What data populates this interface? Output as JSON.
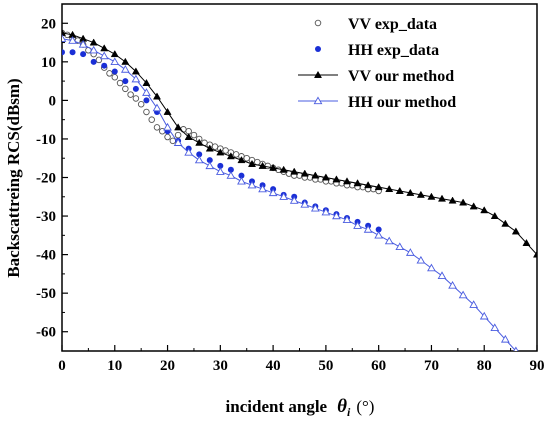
{
  "chart_data": {
    "type": "scatter",
    "xlabel": "incident angle",
    "xlabel_symbol": "θ",
    "xlabel_subscript": "i",
    "xlabel_unit": "(°)",
    "ylabel": "Backscattreing RCS(dBsm)",
    "xlim": [
      0,
      90
    ],
    "ylim": [
      -65,
      25
    ],
    "xticks": [
      "0",
      "10",
      "20",
      "30",
      "40",
      "50",
      "60",
      "70",
      "80",
      "90"
    ],
    "yticks": [
      "20",
      "10",
      "0",
      "-10",
      "-20",
      "-30",
      "-40",
      "-50",
      "-60"
    ],
    "xtick_values": [
      0,
      10,
      20,
      30,
      40,
      50,
      60,
      70,
      80,
      90
    ],
    "ytick_values": [
      20,
      10,
      0,
      -10,
      -20,
      -30,
      -40,
      -50,
      -60
    ],
    "grid": false,
    "legend_position": "top-right",
    "series": [
      {
        "name": "VV exp_data",
        "marker": "open-circle",
        "color": "#555555",
        "x": [
          0,
          1,
          2,
          3,
          4,
          5,
          6,
          7,
          8,
          9,
          10,
          11,
          12,
          13,
          14,
          15,
          16,
          17,
          18,
          19,
          20,
          21,
          22,
          23,
          24,
          25,
          26,
          27,
          28,
          29,
          30,
          31,
          32,
          33,
          34,
          35,
          36,
          37,
          38,
          39,
          40,
          41,
          42,
          43,
          44,
          45,
          46,
          47,
          48,
          49,
          50,
          51,
          52,
          53,
          54,
          55,
          56,
          57,
          58,
          59,
          60
        ],
        "y": [
          17.5,
          17,
          16,
          15.5,
          14.5,
          13,
          12,
          10.5,
          8.5,
          7,
          6,
          4.5,
          3,
          1.5,
          0.5,
          -1,
          -3,
          -5,
          -7,
          -8,
          -9.5,
          -10.5,
          -9,
          -7.5,
          -8,
          -9,
          -10,
          -11,
          -11.5,
          -12,
          -12.5,
          -13,
          -13.5,
          -14,
          -14.5,
          -15,
          -15.5,
          -16,
          -16.5,
          -17,
          -17.5,
          -18,
          -18.5,
          -19,
          -19.5,
          -19.5,
          -20,
          -20,
          -20.5,
          -20.5,
          -21,
          -21,
          -21.5,
          -21.5,
          -22,
          -22,
          -22.5,
          -22.5,
          -23,
          -23,
          -23.5
        ]
      },
      {
        "name": "HH exp_data",
        "marker": "filled-circle",
        "color": "#1a2fd6",
        "x": [
          0,
          2,
          4,
          6,
          8,
          10,
          12,
          14,
          16,
          18,
          20,
          22,
          24,
          26,
          28,
          30,
          32,
          34,
          36,
          38,
          40,
          42,
          44,
          46,
          48,
          50,
          52,
          54,
          56,
          58,
          60
        ],
        "y": [
          12.5,
          12.5,
          12,
          10,
          9,
          7.5,
          5,
          3,
          0,
          -3,
          -8,
          -10.5,
          -12.5,
          -14,
          -15.5,
          -17,
          -18,
          -19.5,
          -21,
          -22,
          -23,
          -24.5,
          -25,
          -26.5,
          -27.5,
          -28.5,
          -29.5,
          -30.5,
          -31.5,
          -32.5,
          -33.5
        ]
      },
      {
        "name": "VV our method",
        "marker": "filled-triangle",
        "color": "#000000",
        "x": [
          0,
          2,
          4,
          6,
          8,
          10,
          12,
          14,
          16,
          18,
          20,
          22,
          24,
          26,
          28,
          30,
          32,
          34,
          36,
          38,
          40,
          42,
          44,
          46,
          48,
          50,
          52,
          54,
          56,
          58,
          60,
          62,
          64,
          66,
          68,
          70,
          72,
          74,
          76,
          78,
          80,
          82,
          84,
          86,
          88,
          90
        ],
        "y": [
          17.5,
          17,
          16,
          15,
          13.5,
          12,
          10,
          7.5,
          4.5,
          1,
          -3,
          -7,
          -9.5,
          -11,
          -12.5,
          -13.5,
          -14.5,
          -15.5,
          -16.5,
          -17,
          -17.5,
          -18,
          -18.5,
          -19,
          -19.5,
          -20,
          -20.5,
          -21,
          -21.5,
          -22,
          -22.5,
          -23,
          -23.5,
          -24,
          -24.5,
          -25,
          -25.5,
          -26,
          -26.5,
          -27.5,
          -28.5,
          -30,
          -32,
          -34,
          -37,
          -40
        ]
      },
      {
        "name": "HH our method",
        "marker": "open-triangle",
        "color": "#4a5ce0",
        "x": [
          0,
          2,
          4,
          6,
          8,
          10,
          12,
          14,
          16,
          18,
          20,
          22,
          24,
          26,
          28,
          30,
          32,
          34,
          36,
          38,
          40,
          42,
          44,
          46,
          48,
          50,
          52,
          54,
          56,
          58,
          60,
          62,
          64,
          66,
          68,
          70,
          72,
          74,
          76,
          78,
          80,
          82,
          84,
          86
        ],
        "y": [
          16,
          15.5,
          14.5,
          13,
          11.5,
          10,
          8,
          5.5,
          2,
          -2,
          -7,
          -11,
          -13.5,
          -15.5,
          -17,
          -18.5,
          -19.5,
          -21,
          -22,
          -23,
          -24,
          -25,
          -26,
          -27,
          -28,
          -29,
          -30,
          -31,
          -32.5,
          -33.5,
          -35,
          -36.5,
          -38,
          -39.5,
          -41.5,
          -43.5,
          -45.5,
          -48,
          -50.5,
          -53,
          -56,
          -59,
          -62,
          -65
        ]
      }
    ]
  }
}
